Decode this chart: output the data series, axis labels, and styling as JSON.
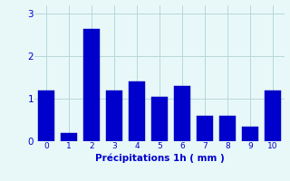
{
  "categories": [
    0,
    1,
    2,
    3,
    4,
    5,
    6,
    7,
    8,
    9,
    10
  ],
  "values": [
    1.2,
    0.2,
    2.65,
    1.2,
    1.4,
    1.05,
    1.3,
    0.6,
    0.6,
    0.35,
    1.2
  ],
  "bar_color": "#0000cc",
  "bar_edge_color": "#0000bb",
  "background_color": "#e8f8f8",
  "grid_color": "#b8d8d8",
  "xlabel": "Précipitations 1h ( mm )",
  "xlabel_color": "#0000cc",
  "tick_color": "#0000cc",
  "ylim": [
    0,
    3.2
  ],
  "yticks": [
    0,
    1,
    2,
    3
  ],
  "xlim": [
    -0.5,
    10.5
  ],
  "bar_width": 0.7
}
